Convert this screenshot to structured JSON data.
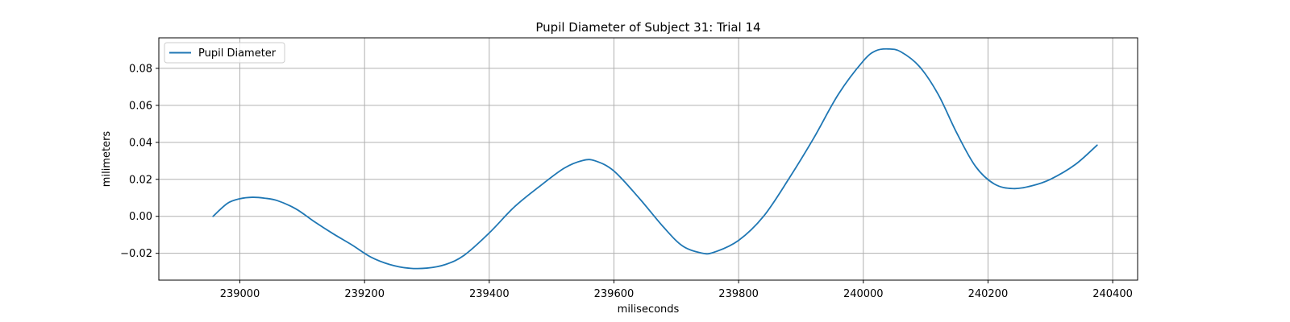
{
  "chart_data": {
    "type": "line",
    "title": "Pupil Diameter of Subject 31: Trial 14",
    "xlabel": "miliseconds",
    "ylabel": "milimeters",
    "xlim": [
      238870,
      240440
    ],
    "ylim": [
      -0.0345,
      0.0965
    ],
    "xticks": [
      239000,
      239200,
      239400,
      239600,
      239800,
      240000,
      240200,
      240400
    ],
    "yticks": [
      -0.02,
      0.0,
      0.02,
      0.04,
      0.06,
      0.08
    ],
    "ytick_labels": [
      "−0.02",
      "0.00",
      "0.02",
      "0.04",
      "0.06",
      "0.08"
    ],
    "grid": true,
    "legend_position": "top-left",
    "series": [
      {
        "name": "Pupil Diameter",
        "color": "#1f77b4",
        "x": [
          238957,
          238980,
          239000,
          239020,
          239040,
          239060,
          239090,
          239120,
          239150,
          239180,
          239210,
          239240,
          239270,
          239300,
          239330,
          239360,
          239400,
          239440,
          239480,
          239520,
          239550,
          239570,
          239600,
          239640,
          239680,
          239710,
          239740,
          239760,
          239800,
          239840,
          239880,
          239920,
          239960,
          240000,
          240020,
          240040,
          240060,
          240090,
          240120,
          240150,
          240180,
          240210,
          240240,
          240270,
          240300,
          240340,
          240375
        ],
        "y": [
          0.0,
          0.007,
          0.0095,
          0.0103,
          0.0098,
          0.0085,
          0.004,
          -0.003,
          -0.0095,
          -0.0155,
          -0.022,
          -0.026,
          -0.028,
          -0.028,
          -0.026,
          -0.021,
          -0.009,
          0.005,
          0.016,
          0.026,
          0.0302,
          0.03,
          0.0245,
          0.01,
          -0.006,
          -0.016,
          -0.0198,
          -0.0195,
          -0.013,
          0.0,
          0.02,
          0.042,
          0.066,
          0.084,
          0.0895,
          0.0905,
          0.089,
          0.081,
          0.066,
          0.045,
          0.027,
          0.0175,
          0.015,
          0.0165,
          0.02,
          0.028,
          0.0385
        ]
      }
    ]
  }
}
